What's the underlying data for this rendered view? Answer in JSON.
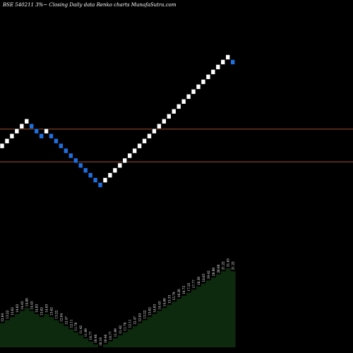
{
  "title": "BSE 540211 3%~  Closing Daily data  Renko  charts MunafaSutra.com",
  "chart_data": {
    "type": "renko",
    "title": "BSE 540211 3%~  Closing Daily data  Renko  charts MunafaSutra.com",
    "box_size_label": "3%",
    "background_color": "#000000",
    "colors": {
      "up_brick": "#ffffff",
      "down_brick": "#1e6fe0",
      "reference_line": "#a0522d",
      "volume_area": "#0e2a0e"
    },
    "reference_lines": [
      14.2,
      11.67
    ],
    "bricks": [
      {
        "value": 12.84,
        "dir": "up"
      },
      {
        "value": 13.22,
        "dir": "up"
      },
      {
        "value": 13.62,
        "dir": "up"
      },
      {
        "value": 14.03,
        "dir": "up"
      },
      {
        "value": 14.45,
        "dir": "up"
      },
      {
        "value": 14.88,
        "dir": "up"
      },
      {
        "value": 14.45,
        "dir": "down"
      },
      {
        "value": 14.03,
        "dir": "down"
      },
      {
        "value": 13.62,
        "dir": "down"
      },
      {
        "value": 14.03,
        "dir": "up"
      },
      {
        "value": 13.62,
        "dir": "down"
      },
      {
        "value": 13.22,
        "dir": "down"
      },
      {
        "value": 12.84,
        "dir": "down"
      },
      {
        "value": 12.47,
        "dir": "down"
      },
      {
        "value": 12.11,
        "dir": "down"
      },
      {
        "value": 11.76,
        "dir": "down"
      },
      {
        "value": 11.42,
        "dir": "down"
      },
      {
        "value": 11.09,
        "dir": "down"
      },
      {
        "value": 10.77,
        "dir": "down"
      },
      {
        "value": 10.46,
        "dir": "down"
      },
      {
        "value": 10.16,
        "dir": "down"
      },
      {
        "value": 10.46,
        "dir": "up"
      },
      {
        "value": 10.77,
        "dir": "up"
      },
      {
        "value": 11.09,
        "dir": "up"
      },
      {
        "value": 11.42,
        "dir": "up"
      },
      {
        "value": 11.76,
        "dir": "up"
      },
      {
        "value": 12.11,
        "dir": "up"
      },
      {
        "value": 12.47,
        "dir": "up"
      },
      {
        "value": 12.84,
        "dir": "up"
      },
      {
        "value": 13.22,
        "dir": "up"
      },
      {
        "value": 13.62,
        "dir": "up"
      },
      {
        "value": 14.03,
        "dir": "up"
      },
      {
        "value": 14.45,
        "dir": "up"
      },
      {
        "value": 14.88,
        "dir": "up"
      },
      {
        "value": 15.33,
        "dir": "up"
      },
      {
        "value": 15.79,
        "dir": "up"
      },
      {
        "value": 16.26,
        "dir": "up"
      },
      {
        "value": 16.75,
        "dir": "up"
      },
      {
        "value": 17.25,
        "dir": "up"
      },
      {
        "value": 17.77,
        "dir": "up"
      },
      {
        "value": 18.3,
        "dir": "up"
      },
      {
        "value": 18.85,
        "dir": "up"
      },
      {
        "value": 19.42,
        "dir": "up"
      },
      {
        "value": 20.0,
        "dir": "up"
      },
      {
        "value": 20.6,
        "dir": "up"
      },
      {
        "value": 21.22,
        "dir": "up"
      },
      {
        "value": 21.85,
        "dir": "up"
      },
      {
        "value": 21.22,
        "dir": "down"
      }
    ],
    "volume_labels": [
      "12.84",
      "13.22",
      "13.62",
      "14.03",
      "14.45",
      "14.88",
      "14.45",
      "14.03",
      "13.62",
      "14.03",
      "13.62",
      "13.22",
      "12.84",
      "12.47",
      "12.11",
      "11.76",
      "11.42",
      "11.09",
      "10.77",
      "10.46",
      "10.16",
      "10.46",
      "10.77",
      "11.09",
      "11.42",
      "11.76",
      "12.11",
      "12.47",
      "12.84",
      "13.22",
      "13.62",
      "14.03",
      "14.45",
      "14.88",
      "15.33",
      "15.79",
      "16.26",
      "16.75",
      "17.25",
      "17.77",
      "18.30",
      "18.85",
      "19.42",
      "20.00",
      "20.60",
      "21.22",
      "21.85",
      "21.22"
    ]
  }
}
